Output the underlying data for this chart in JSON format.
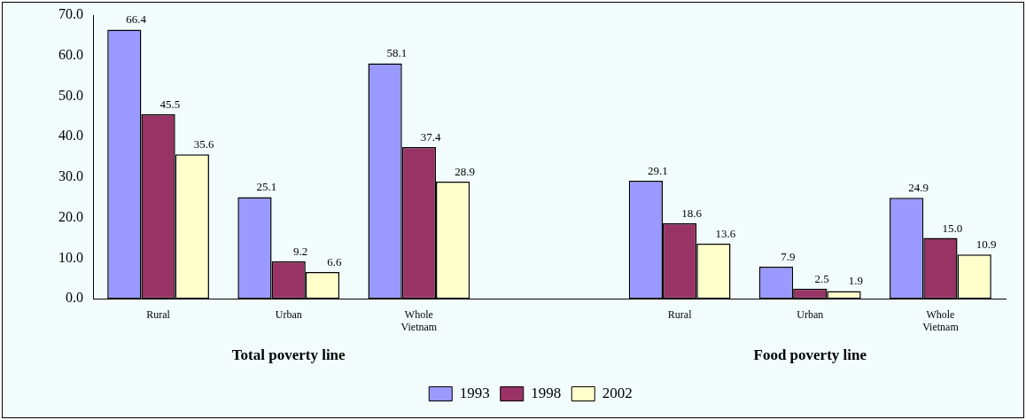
{
  "chart_data": {
    "type": "bar",
    "categories": [
      "Rural",
      "Urban",
      "Whole Vietnam",
      null,
      "Rural",
      "Urban",
      "Whole Vietnam"
    ],
    "series": [
      {
        "name": "1993",
        "color": "#9999ff",
        "values": [
          66.4,
          25.1,
          58.1,
          null,
          29.1,
          7.9,
          24.9
        ],
        "value_labels": [
          "66.4",
          "25.1",
          "58.1",
          null,
          "29.1",
          "7.9",
          "24.9"
        ]
      },
      {
        "name": "1998",
        "color": "#993366",
        "values": [
          45.5,
          9.2,
          37.4,
          null,
          18.6,
          2.5,
          15.0
        ],
        "value_labels": [
          "45.5",
          "9.2",
          "37.4",
          null,
          "18.6",
          "2.5",
          "15.0"
        ]
      },
      {
        "name": "2002",
        "color": "#ffffcc",
        "values": [
          35.6,
          6.6,
          28.9,
          null,
          13.6,
          1.9,
          10.9
        ],
        "value_labels": [
          "35.6",
          "6.6",
          "28.9",
          null,
          "13.6",
          "1.9",
          "10.9"
        ]
      }
    ],
    "ylim": [
      0,
      70
    ],
    "yticks": [
      {
        "value": 0,
        "label": "0.0"
      },
      {
        "value": 10,
        "label": "10.0"
      },
      {
        "value": 20,
        "label": "20.0"
      },
      {
        "value": 30,
        "label": "30.0"
      },
      {
        "value": 40,
        "label": "40.0"
      },
      {
        "value": 50,
        "label": "50.0"
      },
      {
        "value": 60,
        "label": "60.0"
      },
      {
        "value": 70,
        "label": "70.0"
      }
    ],
    "annotations": [
      "Total poverty line",
      "Food poverty line"
    ],
    "grid": false,
    "legend": "bottom"
  }
}
